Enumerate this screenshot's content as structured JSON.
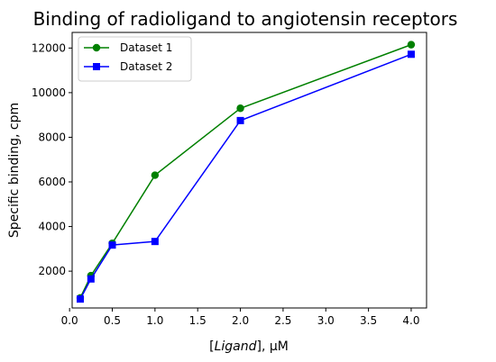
{
  "chart_data": {
    "type": "line",
    "title": "Binding of radioligand to angiotensin receptors",
    "xlabel_prefix": "[",
    "xlabel_italic": "Ligand",
    "xlabel_suffix": "], µM",
    "ylabel": "Specific binding, cpm",
    "xlim": [
      0.03,
      4.18
    ],
    "ylim": [
      350,
      12700
    ],
    "xticks": [
      0.0,
      0.5,
      1.0,
      1.5,
      2.0,
      2.5,
      3.0,
      3.5,
      4.0
    ],
    "xtick_labels": [
      "0.0",
      "0.5",
      "1.0",
      "1.5",
      "2.0",
      "2.5",
      "3.0",
      "3.5",
      "4.0"
    ],
    "yticks": [
      2000,
      4000,
      6000,
      8000,
      10000,
      12000
    ],
    "ytick_labels": [
      "2000",
      "4000",
      "6000",
      "8000",
      "10000",
      "12000"
    ],
    "grid": false,
    "legend_position": "top-left",
    "series": [
      {
        "name": "Dataset 1",
        "color": "#008000",
        "marker": "circle",
        "x": [
          0.125,
          0.25,
          0.5,
          1.0,
          2.0,
          4.0
        ],
        "y": [
          800,
          1800,
          3250,
          6300,
          9300,
          12150
        ]
      },
      {
        "name": "Dataset 2",
        "color": "#0000ff",
        "marker": "square",
        "x": [
          0.125,
          0.25,
          0.5,
          1.0,
          2.0,
          4.0
        ],
        "y": [
          750,
          1650,
          3170,
          3330,
          8750,
          11720
        ]
      }
    ]
  }
}
